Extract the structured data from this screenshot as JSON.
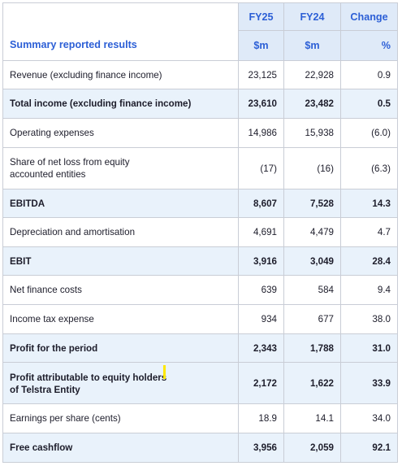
{
  "header": {
    "col_fy25": "FY25",
    "col_fy24": "FY24",
    "col_change": "Change",
    "section_title": "Summary reported results",
    "unit_fy25": "$m",
    "unit_fy24": "$m",
    "unit_change": "%"
  },
  "rows": [
    {
      "label": "Revenue (excluding finance income)",
      "fy25": "23,125",
      "fy24": "22,928",
      "change": "0.9"
    },
    {
      "label": "Total income (excluding finance income)",
      "fy25": "23,610",
      "fy24": "23,482",
      "change": "0.5"
    },
    {
      "label": "Operating expenses",
      "fy25": "14,986",
      "fy24": "15,938",
      "change": "(6.0)"
    },
    {
      "label": "Share of net loss from equity",
      "label2": "accounted entities",
      "fy25": "(17)",
      "fy24": "(16)",
      "change": "(6.3)"
    },
    {
      "label": "EBITDA",
      "fy25": "8,607",
      "fy24": "7,528",
      "change": "14.3"
    },
    {
      "label": "Depreciation and amortisation",
      "fy25": "4,691",
      "fy24": "4,479",
      "change": "4.7"
    },
    {
      "label": "EBIT",
      "fy25": "3,916",
      "fy24": "3,049",
      "change": "28.4"
    },
    {
      "label": "Net finance costs",
      "fy25": "639",
      "fy24": "584",
      "change": "9.4"
    },
    {
      "label": "Income tax expense",
      "fy25": "934",
      "fy24": "677",
      "change": "38.0"
    },
    {
      "label": "Profit for the period",
      "fy25": "2,343",
      "fy24": "1,788",
      "change": "31.0"
    },
    {
      "label": "Profit attributable to equity holders",
      "label2": "of Telstra Entity",
      "fy25": "2,172",
      "fy24": "1,622",
      "change": "33.9"
    },
    {
      "label": "Earnings per share (cents)",
      "fy25": "18.9",
      "fy24": "14.1",
      "change": "34.0"
    },
    {
      "label": "Free cashflow",
      "fy25": "3,956",
      "fy24": "2,059",
      "change": "92.1"
    }
  ],
  "colors": {
    "accent": "#2c5fd6",
    "header_shade": "#dfeaf8",
    "row_shade": "#e9f2fb",
    "border": "#c9cdd6",
    "cursor": "#ffe800"
  }
}
